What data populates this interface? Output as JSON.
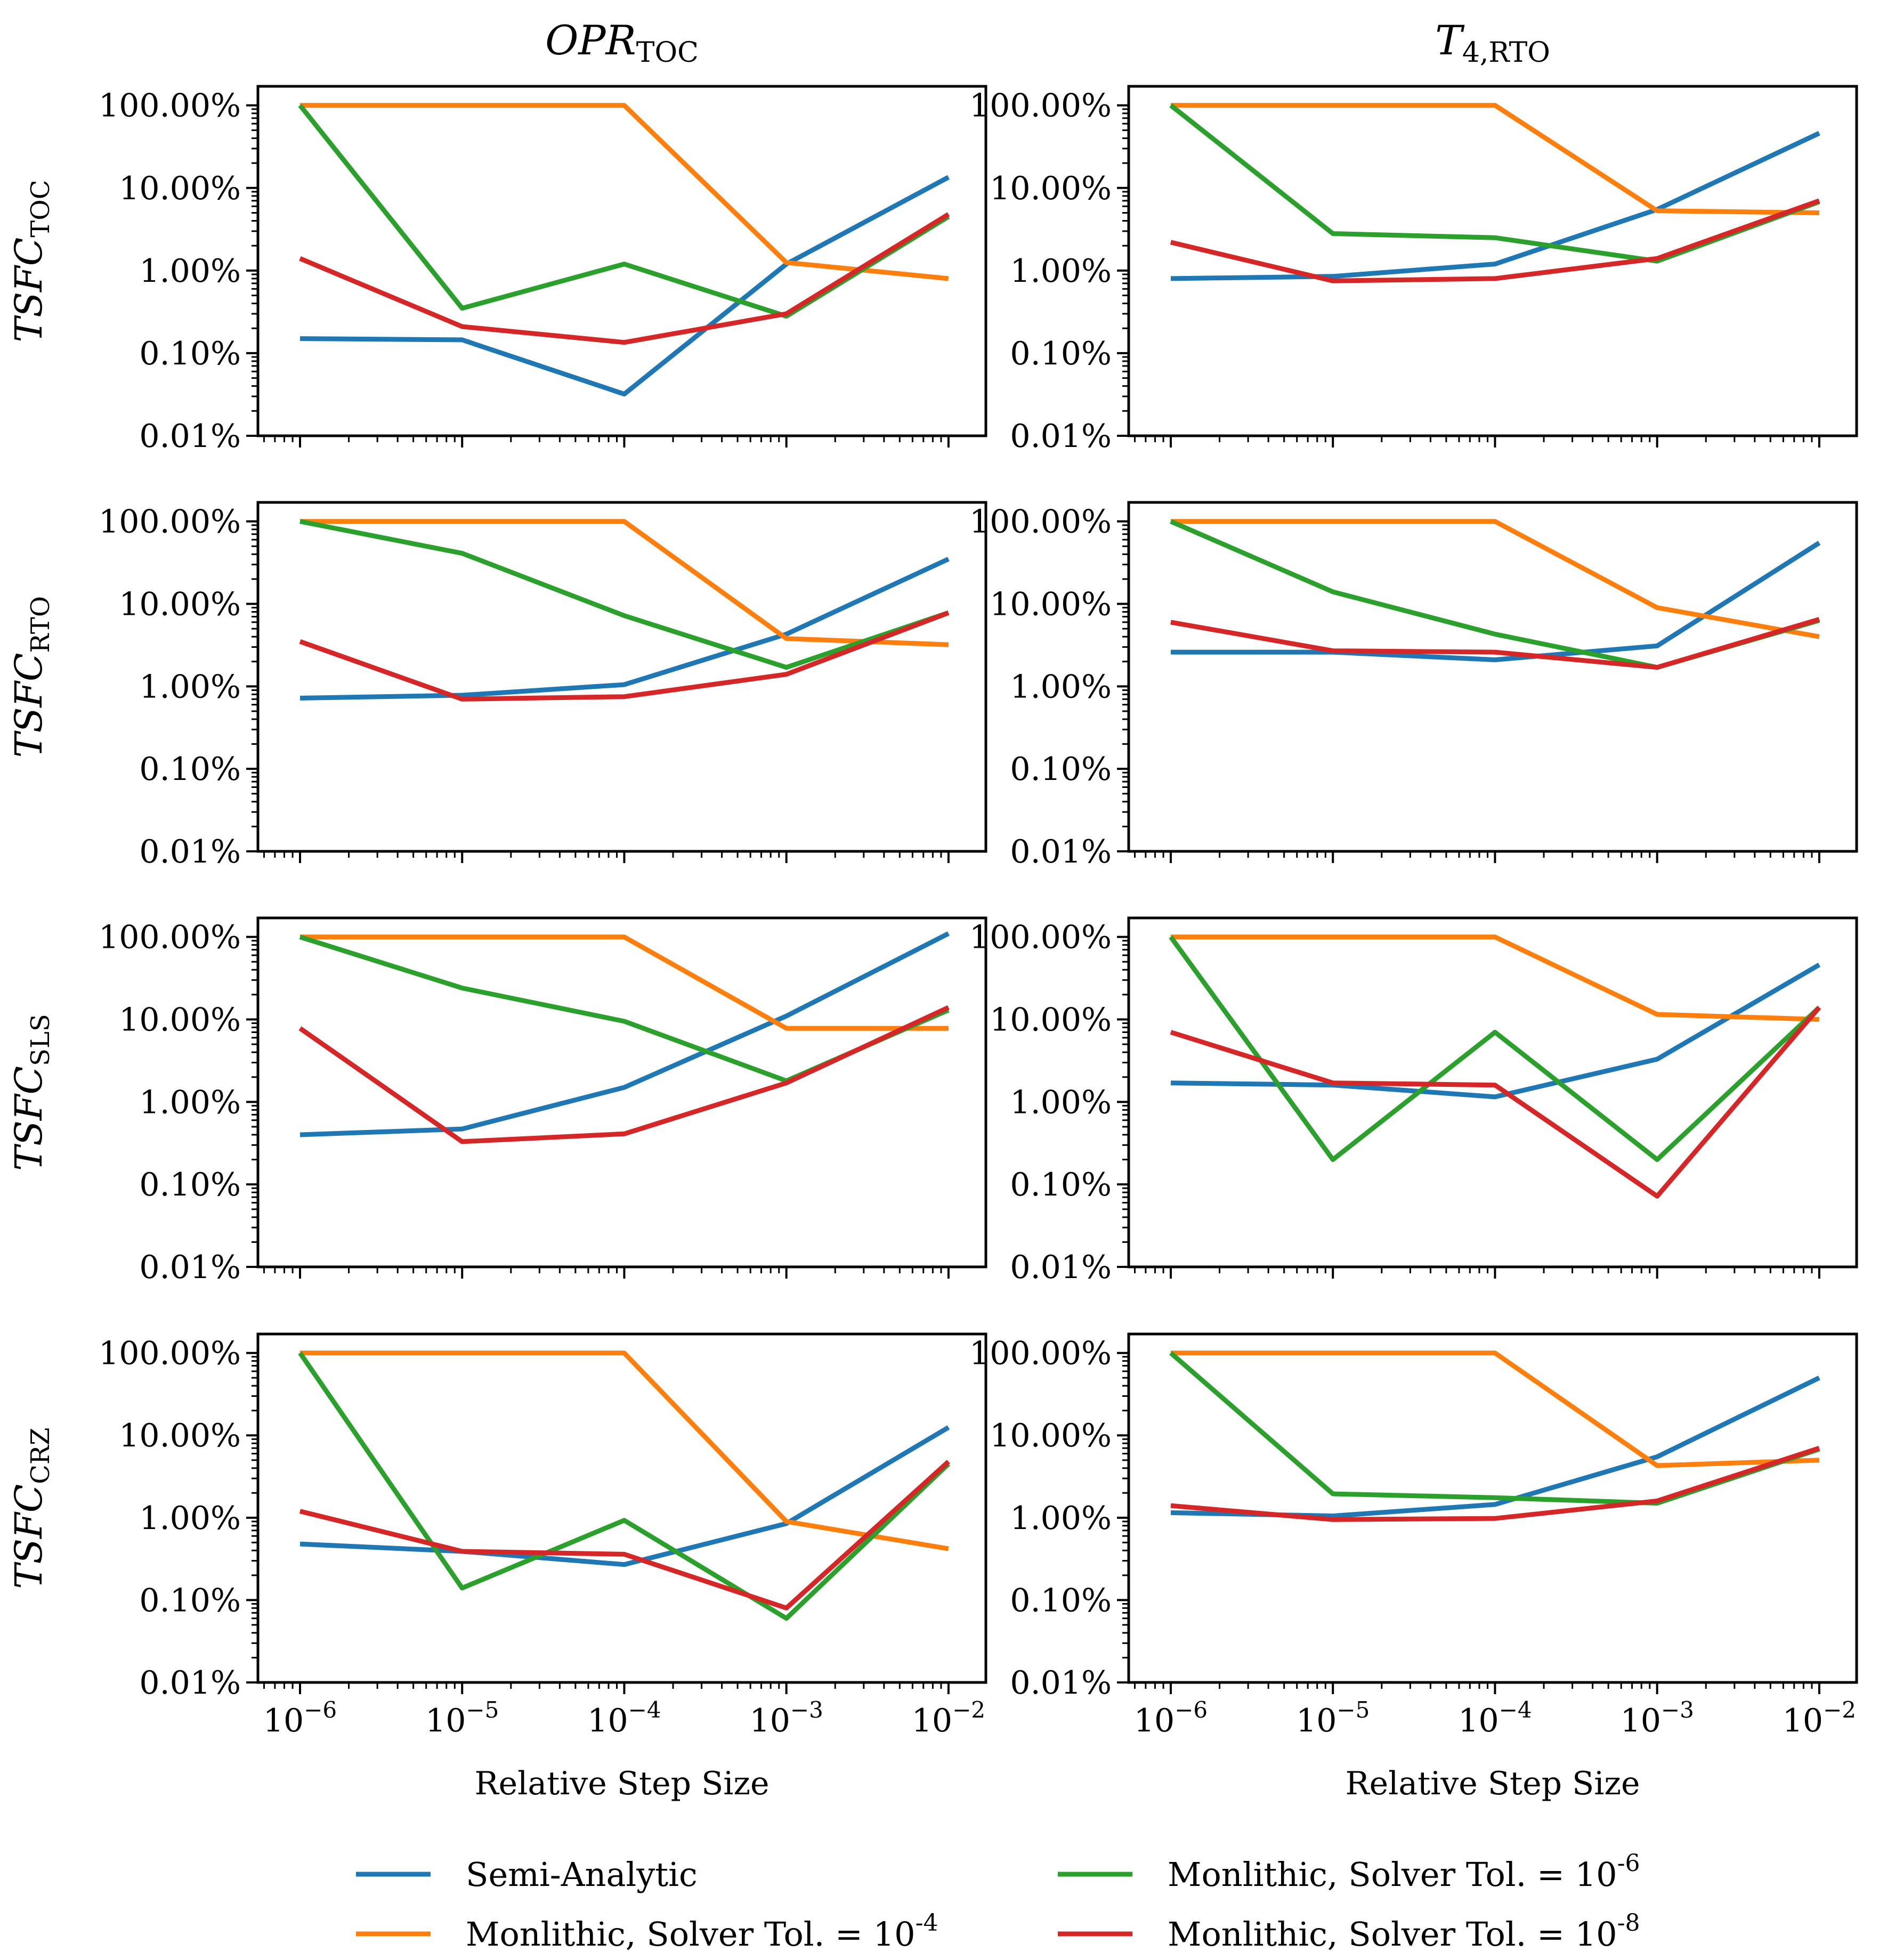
{
  "chart_data": {
    "type": "line",
    "title": "",
    "xscale": "log",
    "yscale": "log",
    "xlabel": "Relative Step Size",
    "x": [
      1e-06,
      1e-05,
      0.0001,
      0.001,
      0.01
    ],
    "x_tick_labels": [
      {
        "base": "10",
        "exp": "−6"
      },
      {
        "base": "10",
        "exp": "−5"
      },
      {
        "base": "10",
        "exp": "−4"
      },
      {
        "base": "10",
        "exp": "−3"
      },
      {
        "base": "10",
        "exp": "−2"
      }
    ],
    "xlim": [
      5.5e-07,
      0.017
    ],
    "ylim": [
      0.01,
      170
    ],
    "y_ticks": [
      0.01,
      0.1,
      1,
      10,
      100
    ],
    "y_tick_labels": [
      "0.01%",
      "0.10%",
      "1.00%",
      "10.00%",
      "100.00%"
    ],
    "yunit": "%",
    "columns": [
      {
        "main": "OPR",
        "sub": "TOC"
      },
      {
        "main": "T",
        "sub": "4,RTO"
      }
    ],
    "rows": [
      {
        "main": "TSFC",
        "sub": "TOC"
      },
      {
        "main": "TSFC",
        "sub": "RTO"
      },
      {
        "main": "TSFC",
        "sub": "SLS"
      },
      {
        "main": "TSFC",
        "sub": "CRZ"
      }
    ],
    "series_styles": [
      {
        "name": "Semi-Analytic",
        "color": "#1f77b4"
      },
      {
        "name": "Monlithic, Solver Tol. = 10",
        "exp": "-4",
        "color": "#ff7f0e"
      },
      {
        "name": "Monlithic, Solver Tol. = 10",
        "exp": "-6",
        "color": "#2ca02c"
      },
      {
        "name": "Monlithic, Solver Tol. = 10",
        "exp": "-8",
        "color": "#d62728"
      }
    ],
    "panels": [
      {
        "row": 0,
        "col": 0,
        "series": [
          {
            "name": "Semi-Analytic",
            "values": [
              0.15,
              0.145,
              0.032,
              1.2,
              13.5
            ]
          },
          {
            "name": "Monlithic, Solver Tol. = 10^-4",
            "values": [
              100,
              100,
              100,
              1.25,
              0.8
            ]
          },
          {
            "name": "Monlithic, Solver Tol. = 10^-6",
            "values": [
              100,
              0.35,
              1.2,
              0.28,
              4.5
            ]
          },
          {
            "name": "Monlithic, Solver Tol. = 10^-8",
            "values": [
              1.4,
              0.21,
              0.135,
              0.3,
              4.8
            ]
          }
        ]
      },
      {
        "row": 0,
        "col": 1,
        "series": [
          {
            "name": "Semi-Analytic",
            "values": [
              0.8,
              0.85,
              1.2,
              5.5,
              46
            ]
          },
          {
            "name": "Monlithic, Solver Tol. = 10^-4",
            "values": [
              100,
              100,
              100,
              5.3,
              5.0
            ]
          },
          {
            "name": "Monlithic, Solver Tol. = 10^-6",
            "values": [
              100,
              2.8,
              2.5,
              1.3,
              6.8
            ]
          },
          {
            "name": "Monlithic, Solver Tol. = 10^-8",
            "values": [
              2.2,
              0.75,
              0.8,
              1.4,
              7.0
            ]
          }
        ]
      },
      {
        "row": 1,
        "col": 0,
        "series": [
          {
            "name": "Semi-Analytic",
            "values": [
              0.72,
              0.78,
              1.05,
              4.3,
              35
            ]
          },
          {
            "name": "Monlithic, Solver Tol. = 10^-4",
            "values": [
              100,
              100,
              100,
              3.8,
              3.2
            ]
          },
          {
            "name": "Monlithic, Solver Tol. = 10^-6",
            "values": [
              100,
              41,
              7.2,
              1.7,
              7.8
            ]
          },
          {
            "name": "Monlithic, Solver Tol. = 10^-8",
            "values": [
              3.5,
              0.7,
              0.75,
              1.4,
              7.8
            ]
          }
        ]
      },
      {
        "row": 1,
        "col": 1,
        "series": [
          {
            "name": "Semi-Analytic",
            "values": [
              2.6,
              2.6,
              2.1,
              3.1,
              55
            ]
          },
          {
            "name": "Monlithic, Solver Tol. = 10^-4",
            "values": [
              100,
              100,
              100,
              9.0,
              4.0
            ]
          },
          {
            "name": "Monlithic, Solver Tol. = 10^-6",
            "values": [
              100,
              14,
              4.3,
              1.7,
              6.3
            ]
          },
          {
            "name": "Monlithic, Solver Tol. = 10^-8",
            "values": [
              6.0,
              2.7,
              2.6,
              1.7,
              6.5
            ]
          }
        ]
      },
      {
        "row": 2,
        "col": 0,
        "series": [
          {
            "name": "Semi-Analytic",
            "values": [
              0.4,
              0.47,
              1.5,
              11,
              110
            ]
          },
          {
            "name": "Monlithic, Solver Tol. = 10^-4",
            "values": [
              100,
              100,
              100,
              7.8,
              7.8
            ]
          },
          {
            "name": "Monlithic, Solver Tol. = 10^-6",
            "values": [
              100,
              24,
              9.5,
              1.8,
              13
            ]
          },
          {
            "name": "Monlithic, Solver Tol. = 10^-8",
            "values": [
              7.8,
              0.33,
              0.41,
              1.7,
              14
            ]
          }
        ]
      },
      {
        "row": 2,
        "col": 1,
        "series": [
          {
            "name": "Semi-Analytic",
            "values": [
              1.7,
              1.6,
              1.15,
              3.3,
              46
            ]
          },
          {
            "name": "Monlithic, Solver Tol. = 10^-4",
            "values": [
              100,
              100,
              100,
              11.5,
              10
            ]
          },
          {
            "name": "Monlithic, Solver Tol. = 10^-6",
            "values": [
              100,
              0.2,
              7.0,
              0.2,
              14
            ]
          },
          {
            "name": "Monlithic, Solver Tol. = 10^-8",
            "values": [
              7.0,
              1.7,
              1.6,
              0.072,
              14
            ]
          }
        ]
      },
      {
        "row": 3,
        "col": 0,
        "series": [
          {
            "name": "Semi-Analytic",
            "values": [
              0.48,
              0.39,
              0.27,
              0.85,
              12.5
            ]
          },
          {
            "name": "Monlithic, Solver Tol. = 10^-4",
            "values": [
              100,
              100,
              100,
              0.9,
              0.42
            ]
          },
          {
            "name": "Monlithic, Solver Tol. = 10^-6",
            "values": [
              100,
              0.14,
              0.93,
              0.06,
              4.5
            ]
          },
          {
            "name": "Monlithic, Solver Tol. = 10^-8",
            "values": [
              1.2,
              0.39,
              0.36,
              0.08,
              4.8
            ]
          }
        ]
      },
      {
        "row": 3,
        "col": 1,
        "series": [
          {
            "name": "Semi-Analytic",
            "values": [
              1.15,
              1.05,
              1.45,
              5.5,
              50
            ]
          },
          {
            "name": "Monlithic, Solver Tol. = 10^-4",
            "values": [
              100,
              100,
              100,
              4.3,
              5.0
            ]
          },
          {
            "name": "Monlithic, Solver Tol. = 10^-6",
            "values": [
              100,
              1.95,
              1.75,
              1.5,
              6.8
            ]
          },
          {
            "name": "Monlithic, Solver Tol. = 10^-8",
            "values": [
              1.4,
              0.95,
              0.98,
              1.6,
              7.0
            ]
          }
        ]
      }
    ]
  }
}
